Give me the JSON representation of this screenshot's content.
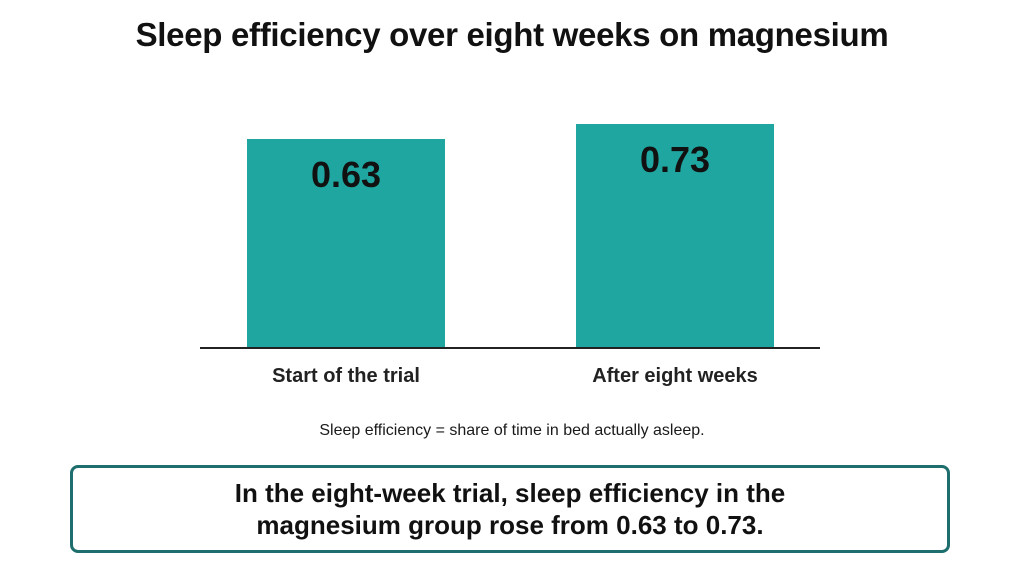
{
  "title": "Sleep efficiency over eight weeks on magnesium",
  "footnote": "Sleep efficiency = share of time in bed actually asleep.",
  "callout": "In the eight-week trial, sleep efficiency in the magnesium group rose from 0.63 to 0.73.",
  "colors": {
    "bar": "#1fa6a0",
    "callout_border": "#1e6e6e"
  },
  "chart_data": {
    "type": "bar",
    "title": "Sleep efficiency over eight weeks on magnesium",
    "categories": [
      "Start of the trial",
      "After eight weeks"
    ],
    "values": [
      0.63,
      0.73
    ],
    "value_labels": [
      "0.63",
      "0.73"
    ],
    "xlabel": "",
    "ylabel": "",
    "grid": false
  }
}
